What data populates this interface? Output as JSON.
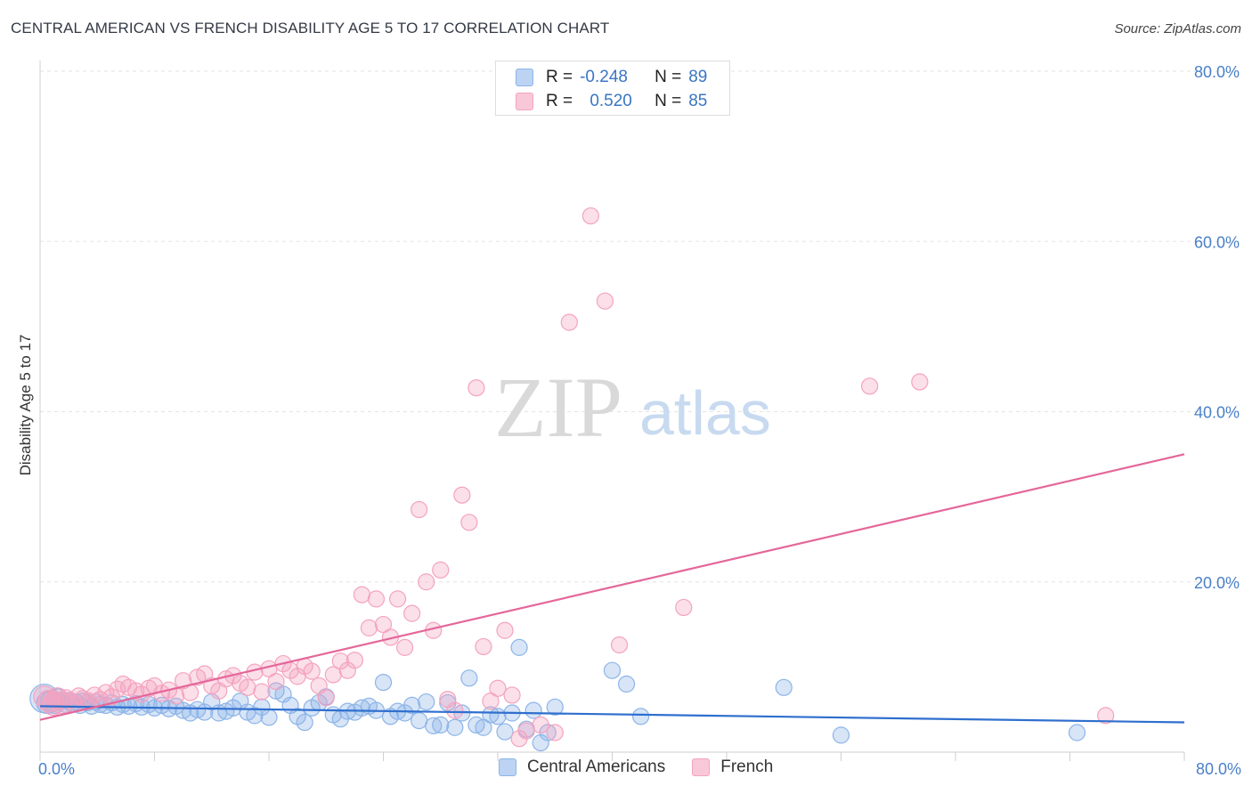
{
  "chart_data": {
    "type": "scatter",
    "title": "CENTRAL AMERICAN VS FRENCH DISABILITY AGE 5 TO 17 CORRELATION CHART",
    "source": "Source: ZipAtlas.com",
    "ylabel": "Disability Age 5 to 17",
    "xlabel": "",
    "xlim": [
      0,
      80
    ],
    "ylim": [
      0,
      80
    ],
    "x_tick_labels": [
      "0.0%",
      "80.0%"
    ],
    "y_tick_labels": [
      "20.0%",
      "40.0%",
      "60.0%",
      "80.0%"
    ],
    "y_ticks": [
      20,
      40,
      60,
      80
    ],
    "watermark": {
      "zip": "ZIP",
      "atlas": "atlas"
    },
    "legend_stats": [
      {
        "r_label": "R =",
        "r_value": "-0.248",
        "n_label": "N =",
        "n_value": "89"
      },
      {
        "r_label": "R =",
        "r_value": "0.520",
        "n_label": "N =",
        "n_value": "85"
      }
    ],
    "series": [
      {
        "name": "Central Americans",
        "color": "#8db4e8",
        "line_color": "#2f6fce",
        "trend": {
          "x": [
            0,
            80
          ],
          "y": [
            5.4,
            3.5
          ]
        },
        "points": [
          [
            0.3,
            6.3,
            3
          ],
          [
            0.5,
            5.8,
            2
          ],
          [
            0.8,
            6.0,
            2
          ],
          [
            1.0,
            5.5,
            1
          ],
          [
            1.2,
            6.2,
            2
          ],
          [
            1.4,
            5.9,
            1
          ],
          [
            1.6,
            6.1,
            1
          ],
          [
            1.8,
            5.6,
            1
          ],
          [
            2.0,
            6.0,
            1
          ],
          [
            2.2,
            5.7,
            1
          ],
          [
            2.5,
            5.9,
            1
          ],
          [
            2.8,
            5.5,
            1
          ],
          [
            3.0,
            6.0,
            1
          ],
          [
            3.3,
            5.8,
            1
          ],
          [
            3.6,
            5.4,
            1
          ],
          [
            3.9,
            5.9,
            1
          ],
          [
            4.2,
            5.6,
            1
          ],
          [
            4.6,
            5.5,
            1
          ],
          [
            5.0,
            5.8,
            1
          ],
          [
            5.4,
            5.3,
            1
          ],
          [
            5.8,
            5.6,
            1
          ],
          [
            6.2,
            5.4,
            1
          ],
          [
            6.7,
            5.7,
            1
          ],
          [
            7.1,
            5.3,
            1
          ],
          [
            7.6,
            5.6,
            1
          ],
          [
            8.0,
            5.2,
            1
          ],
          [
            8.5,
            5.5,
            1
          ],
          [
            9.0,
            5.1,
            1
          ],
          [
            9.5,
            5.4,
            1
          ],
          [
            10.0,
            4.9,
            1
          ],
          [
            10.5,
            4.6,
            1
          ],
          [
            11.0,
            5.0,
            1
          ],
          [
            11.5,
            4.7,
            1
          ],
          [
            12.0,
            5.9,
            1
          ],
          [
            12.5,
            4.6,
            1
          ],
          [
            13.0,
            4.8,
            1
          ],
          [
            13.5,
            5.2,
            1
          ],
          [
            14.0,
            6.0,
            1
          ],
          [
            14.5,
            4.7,
            1
          ],
          [
            15.0,
            4.3,
            1
          ],
          [
            15.5,
            5.3,
            1
          ],
          [
            16.0,
            4.1,
            1
          ],
          [
            16.5,
            7.2,
            1
          ],
          [
            17.0,
            6.8,
            1
          ],
          [
            17.5,
            5.5,
            1
          ],
          [
            18.0,
            4.2,
            1
          ],
          [
            18.5,
            3.5,
            1
          ],
          [
            19.0,
            5.2,
            1
          ],
          [
            19.5,
            5.8,
            1
          ],
          [
            20.0,
            6.5,
            1
          ],
          [
            20.5,
            4.4,
            1
          ],
          [
            21.0,
            3.9,
            1
          ],
          [
            21.5,
            4.8,
            1
          ],
          [
            22.0,
            4.7,
            1
          ],
          [
            22.5,
            5.2,
            1
          ],
          [
            23.0,
            5.4,
            1
          ],
          [
            23.5,
            4.9,
            1
          ],
          [
            24.0,
            8.2,
            1
          ],
          [
            24.5,
            4.2,
            1
          ],
          [
            25.0,
            4.8,
            1
          ],
          [
            25.5,
            4.6,
            1
          ],
          [
            26.0,
            5.5,
            1
          ],
          [
            26.5,
            3.7,
            1
          ],
          [
            27.0,
            5.9,
            1
          ],
          [
            27.5,
            3.1,
            1
          ],
          [
            28.0,
            3.2,
            1
          ],
          [
            28.5,
            5.8,
            1
          ],
          [
            29.0,
            2.9,
            1
          ],
          [
            29.5,
            4.6,
            1
          ],
          [
            30.0,
            8.7,
            1
          ],
          [
            30.5,
            3.2,
            1
          ],
          [
            31.0,
            2.9,
            1
          ],
          [
            31.5,
            4.4,
            1
          ],
          [
            32.0,
            4.2,
            1
          ],
          [
            32.5,
            2.4,
            1
          ],
          [
            33.0,
            4.6,
            1
          ],
          [
            33.5,
            12.3,
            1
          ],
          [
            34.0,
            2.7,
            1
          ],
          [
            34.5,
            4.9,
            1
          ],
          [
            35.0,
            1.1,
            1
          ],
          [
            35.5,
            2.3,
            1
          ],
          [
            36.0,
            5.3,
            1
          ],
          [
            40.0,
            9.6,
            1
          ],
          [
            41.0,
            8.0,
            1
          ],
          [
            42.0,
            4.2,
            1
          ],
          [
            52.0,
            7.6,
            1
          ],
          [
            56.0,
            2.0,
            1
          ],
          [
            72.5,
            2.3,
            1
          ]
        ]
      },
      {
        "name": "French",
        "color": "#f4a3bf",
        "line_color": "#e4679a",
        "trend": {
          "x": [
            0,
            80
          ],
          "y": [
            3.8,
            35.0
          ]
        },
        "points": [
          [
            0.3,
            6.5,
            2
          ],
          [
            0.6,
            6.0,
            2
          ],
          [
            0.9,
            5.6,
            2
          ],
          [
            1.2,
            6.3,
            2
          ],
          [
            1.5,
            5.8,
            2
          ],
          [
            1.8,
            6.4,
            1
          ],
          [
            2.1,
            6.1,
            1
          ],
          [
            2.4,
            5.7,
            1
          ],
          [
            2.7,
            6.6,
            1
          ],
          [
            3.0,
            6.3,
            1
          ],
          [
            3.4,
            6.0,
            1
          ],
          [
            3.8,
            6.7,
            1
          ],
          [
            4.2,
            6.2,
            1
          ],
          [
            4.6,
            7.0,
            1
          ],
          [
            5.0,
            6.5,
            1
          ],
          [
            5.4,
            7.4,
            1
          ],
          [
            5.8,
            8.0,
            1
          ],
          [
            6.2,
            7.6,
            1
          ],
          [
            6.7,
            7.2,
            1
          ],
          [
            7.1,
            6.8,
            1
          ],
          [
            7.6,
            7.5,
            1
          ],
          [
            8.0,
            7.8,
            1
          ],
          [
            8.5,
            6.9,
            1
          ],
          [
            9.0,
            7.3,
            1
          ],
          [
            9.5,
            6.6,
            1
          ],
          [
            10.0,
            8.4,
            1
          ],
          [
            10.5,
            7.0,
            1
          ],
          [
            11.0,
            8.8,
            1
          ],
          [
            11.5,
            9.2,
            1
          ],
          [
            12.0,
            7.8,
            1
          ],
          [
            12.5,
            7.2,
            1
          ],
          [
            13.0,
            8.6,
            1
          ],
          [
            13.5,
            9.0,
            1
          ],
          [
            14.0,
            8.1,
            1
          ],
          [
            14.5,
            7.6,
            1
          ],
          [
            15.0,
            9.4,
            1
          ],
          [
            15.5,
            7.1,
            1
          ],
          [
            16.0,
            9.8,
            1
          ],
          [
            16.5,
            8.3,
            1
          ],
          [
            17.0,
            10.4,
            1
          ],
          [
            17.5,
            9.6,
            1
          ],
          [
            18.0,
            8.9,
            1
          ],
          [
            18.5,
            10.1,
            1
          ],
          [
            19.0,
            9.5,
            1
          ],
          [
            19.5,
            7.8,
            1
          ],
          [
            20.0,
            6.4,
            1
          ],
          [
            20.5,
            9.1,
            1
          ],
          [
            21.0,
            10.7,
            1
          ],
          [
            21.5,
            9.6,
            1
          ],
          [
            22.0,
            10.8,
            1
          ],
          [
            22.5,
            18.5,
            1
          ],
          [
            23.0,
            14.6,
            1
          ],
          [
            23.5,
            18.0,
            1
          ],
          [
            24.0,
            15.0,
            1
          ],
          [
            24.5,
            13.5,
            1
          ],
          [
            25.0,
            18.0,
            1
          ],
          [
            25.5,
            12.3,
            1
          ],
          [
            26.0,
            16.3,
            1
          ],
          [
            26.5,
            28.5,
            1
          ],
          [
            27.0,
            20.0,
            1
          ],
          [
            27.5,
            14.3,
            1
          ],
          [
            28.0,
            21.4,
            1
          ],
          [
            28.5,
            6.2,
            1
          ],
          [
            29.0,
            4.9,
            1
          ],
          [
            29.5,
            30.2,
            1
          ],
          [
            30.0,
            27.0,
            1
          ],
          [
            30.5,
            42.8,
            1
          ],
          [
            31.0,
            12.4,
            1
          ],
          [
            31.5,
            6.0,
            1
          ],
          [
            32.0,
            7.5,
            1
          ],
          [
            32.5,
            14.3,
            1
          ],
          [
            33.0,
            6.7,
            1
          ],
          [
            33.5,
            1.6,
            1
          ],
          [
            34.0,
            2.5,
            1
          ],
          [
            35.0,
            3.2,
            1
          ],
          [
            36.0,
            2.3,
            1
          ],
          [
            37.0,
            50.5,
            1
          ],
          [
            38.5,
            63.0,
            1
          ],
          [
            39.5,
            53.0,
            1
          ],
          [
            40.5,
            12.6,
            1
          ],
          [
            45.0,
            17.0,
            1
          ],
          [
            58.0,
            43.0,
            1
          ],
          [
            61.5,
            43.5,
            1
          ],
          [
            74.5,
            4.3,
            1
          ],
          [
            1.0,
            6.2,
            1
          ]
        ]
      }
    ]
  },
  "legend_bottom": [
    "Central Americans",
    "French"
  ]
}
